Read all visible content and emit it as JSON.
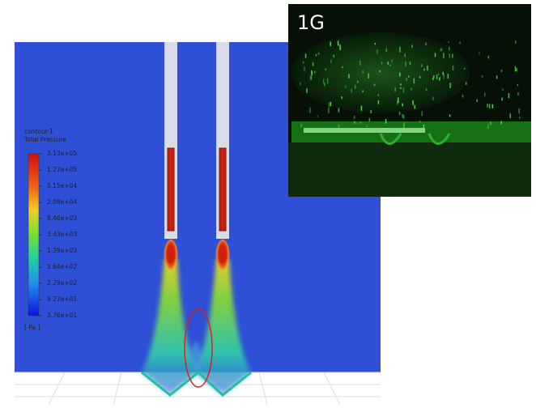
{
  "legend": {
    "title": "contour-1",
    "variable": "Total Pressure",
    "unit": "[ Pa ]",
    "labels": [
      "3.13e+05",
      "1.27e+05",
      "5.15e+04",
      "2.09e+04",
      "8.46e+03",
      "3.43e+03",
      "1.39e+03",
      "5.64e+02",
      "2.29e+02",
      "9.27e+01",
      "3.76e+01"
    ]
  },
  "inset": {
    "label": "1G"
  }
}
